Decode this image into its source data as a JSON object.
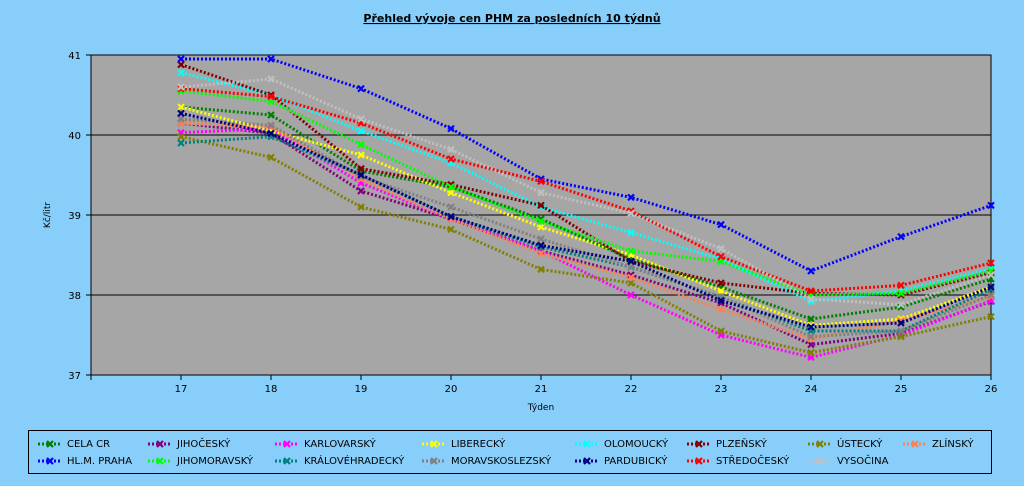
{
  "chart_data": {
    "type": "line",
    "title": "Přehled vývoje cen PHM za posledních 10 týdnů",
    "xlabel": "Týden",
    "ylabel": "Kč/litr",
    "ylim": [
      37,
      41
    ],
    "yticks": [
      37,
      38,
      39,
      40,
      41
    ],
    "grid": true,
    "legend_position": "bottom",
    "x": [
      17,
      18,
      19,
      20,
      21,
      22,
      23,
      24,
      25,
      26
    ],
    "series": [
      {
        "name": "CELA CR",
        "color": "#008000",
        "values": [
          40.35,
          40.25,
          39.55,
          39.35,
          38.95,
          38.45,
          38.1,
          37.7,
          37.85,
          38.2
        ]
      },
      {
        "name": "JIHOČESKÝ",
        "color": "#800080",
        "values": [
          40.15,
          40.02,
          39.3,
          38.95,
          38.55,
          38.25,
          37.9,
          37.38,
          37.52,
          37.92
        ]
      },
      {
        "name": "KARLOVARSKÝ",
        "color": "#FF00FF",
        "values": [
          40.03,
          40.08,
          39.4,
          38.95,
          38.55,
          38.0,
          37.5,
          37.22,
          37.5,
          37.93
        ]
      },
      {
        "name": "LIBERECKÝ",
        "color": "#FFFF00",
        "values": [
          40.35,
          40.05,
          39.75,
          39.28,
          38.85,
          38.5,
          38.05,
          37.62,
          37.7,
          38.1
        ]
      },
      {
        "name": "OLOMOUCKÝ",
        "color": "#00FFFF",
        "values": [
          40.78,
          40.5,
          40.05,
          39.65,
          39.1,
          38.78,
          38.45,
          37.92,
          38.05,
          38.33
        ]
      },
      {
        "name": "PLZEŇSKÝ",
        "color": "#800000",
        "values": [
          40.88,
          40.5,
          39.58,
          39.38,
          39.12,
          38.42,
          38.15,
          38.02,
          38.0,
          38.28
        ]
      },
      {
        "name": "ÚSTECKÝ",
        "color": "#808000",
        "values": [
          39.98,
          39.72,
          39.1,
          38.82,
          38.32,
          38.15,
          37.55,
          37.28,
          37.48,
          37.73
        ]
      },
      {
        "name": "ZLÍNSKÝ",
        "color": "#FF7F50",
        "values": [
          40.15,
          40.1,
          39.45,
          38.95,
          38.52,
          38.22,
          37.82,
          37.45,
          37.68,
          37.98
        ]
      },
      {
        "name": "HL.M. PRAHA",
        "color": "#0000FF",
        "values": [
          40.95,
          40.95,
          40.58,
          40.08,
          39.45,
          39.22,
          38.88,
          38.3,
          38.73,
          39.12
        ]
      },
      {
        "name": "JIHOMORAVSKÝ",
        "color": "#00FF00",
        "values": [
          40.55,
          40.42,
          39.88,
          39.35,
          38.92,
          38.55,
          38.42,
          38.0,
          38.02,
          38.3
        ]
      },
      {
        "name": "KRÁLOVÉHRADECKÝ",
        "color": "#008080",
        "values": [
          39.9,
          39.98,
          39.5,
          38.98,
          38.6,
          38.35,
          37.97,
          37.55,
          37.55,
          38.07
        ]
      },
      {
        "name": "MORAVSKOSLEZSKÝ",
        "color": "#808080",
        "values": [
          40.2,
          40.12,
          39.48,
          39.1,
          38.7,
          38.35,
          37.98,
          37.48,
          37.55,
          38.0
        ]
      },
      {
        "name": "PARDUBICKÝ",
        "color": "#000080",
        "values": [
          40.27,
          40.02,
          39.5,
          38.98,
          38.62,
          38.42,
          37.93,
          37.6,
          37.65,
          38.1
        ]
      },
      {
        "name": "STŘEDOČESKÝ",
        "color": "#FF0000",
        "values": [
          40.58,
          40.48,
          40.15,
          39.7,
          39.42,
          39.05,
          38.48,
          38.05,
          38.12,
          38.4
        ]
      },
      {
        "name": "VYSOČINA",
        "color": "#C0C0C0",
        "values": [
          40.6,
          40.7,
          40.2,
          39.82,
          39.28,
          39.02,
          38.58,
          37.95,
          37.88,
          38.25
        ]
      }
    ]
  }
}
